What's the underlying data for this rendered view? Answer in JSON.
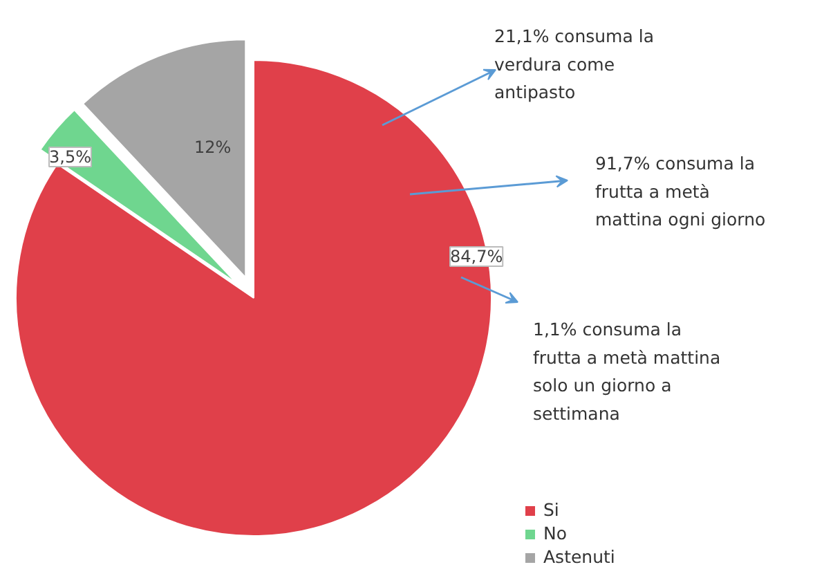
{
  "chart_data": {
    "type": "pie",
    "categories": [
      "Si",
      "No",
      "Astenuti"
    ],
    "values": [
      84.7,
      3.5,
      12
    ],
    "colors": [
      "#e0404a",
      "#6fd68f",
      "#a5a5a5"
    ],
    "value_labels": [
      "84,7%",
      "3,5%",
      "12%"
    ],
    "legend": "bottom right",
    "annotations": [
      "21,1% consuma la verdura come antipasto",
      "91,7% consuma la frutta a metà mattina ogni giorno",
      "1,1% consuma la frutta a metà mattina solo un giorno a settimana"
    ]
  }
}
